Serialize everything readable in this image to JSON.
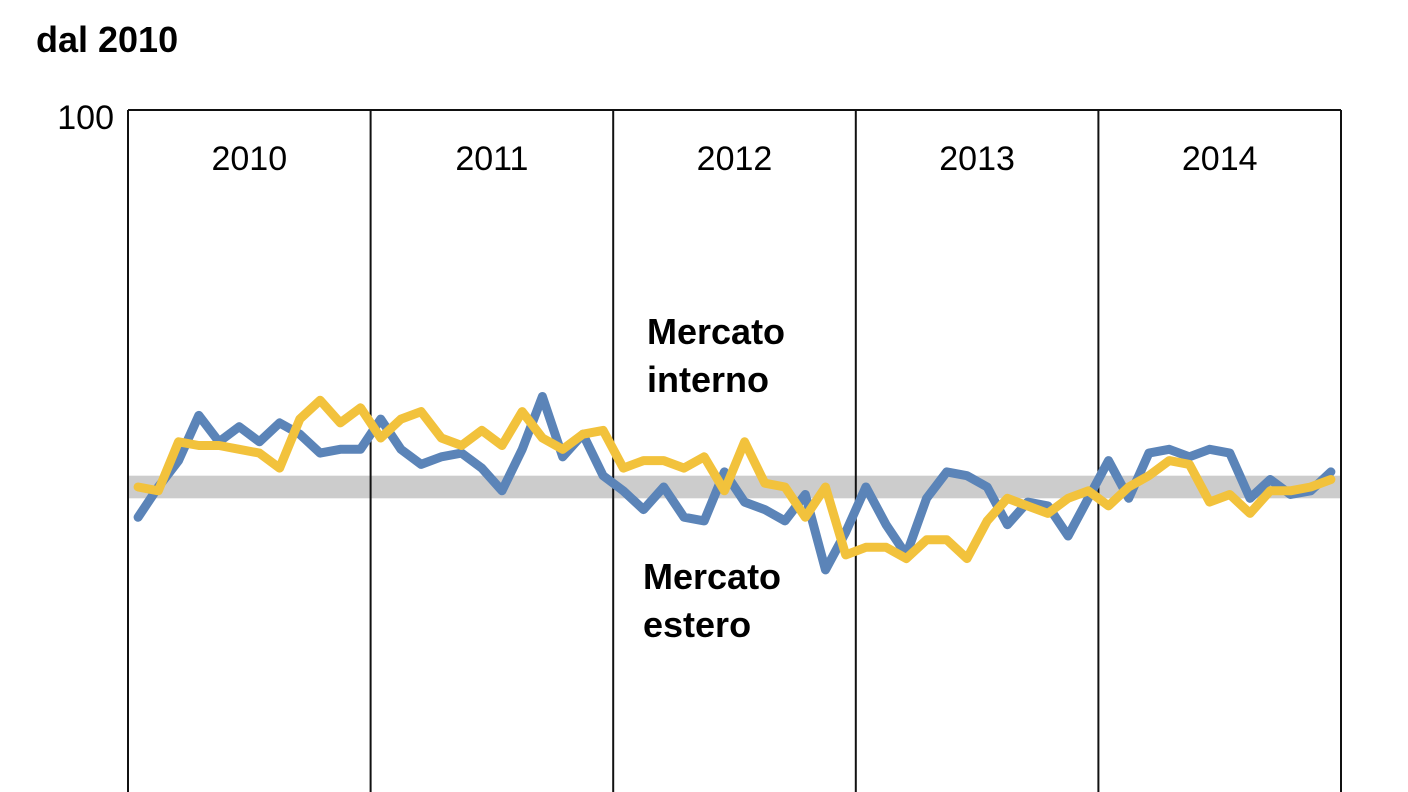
{
  "chart_data": {
    "type": "line",
    "subtitle": "dal 2010",
    "x_unit": "month",
    "periods": [
      "2010",
      "2011",
      "2012",
      "2013",
      "2014"
    ],
    "y_tick_labels": [
      "100"
    ],
    "ylim": [
      -100,
      100
    ],
    "neutral_band": [
      -3,
      3
    ],
    "grid": false,
    "legend": "inline labels",
    "colors": {
      "band": "#cccccc",
      "axis": "#111111"
    },
    "series": [
      {
        "name": "Mercato interno",
        "color": "#f2c23c",
        "label_lines": [
          "Mercato",
          "interno"
        ],
        "values": [
          0,
          -1,
          12,
          11,
          11,
          10,
          9,
          5,
          18,
          23,
          17,
          21,
          13,
          18,
          20,
          13,
          11,
          15,
          11,
          20,
          13,
          10,
          14,
          15,
          5,
          7,
          7,
          5,
          8,
          -1,
          12,
          1,
          0,
          -8,
          0,
          -18,
          -16,
          -16,
          -19,
          -14,
          -14,
          -19,
          -9,
          -3,
          -5,
          -7,
          -3,
          -1,
          -5,
          0,
          3,
          7,
          6,
          -4,
          -2,
          -7,
          -1,
          -1,
          0,
          2
        ]
      },
      {
        "name": "Mercato estero",
        "color": "#5b84b8",
        "label_lines": [
          "Mercato",
          "estero"
        ],
        "values": [
          -8,
          0,
          7,
          19,
          12,
          16,
          12,
          17,
          14,
          9,
          10,
          10,
          18,
          10,
          6,
          8,
          9,
          5,
          -1,
          10,
          24,
          8,
          14,
          3,
          -1,
          -6,
          0,
          -8,
          -9,
          4,
          -4,
          -6,
          -9,
          -2,
          -22,
          -12,
          0,
          -10,
          -18,
          -3,
          4,
          3,
          0,
          -10,
          -4,
          -5,
          -13,
          -3,
          7,
          -3,
          9,
          10,
          8,
          10,
          9,
          -3,
          2,
          -2,
          -1,
          4
        ]
      }
    ]
  }
}
